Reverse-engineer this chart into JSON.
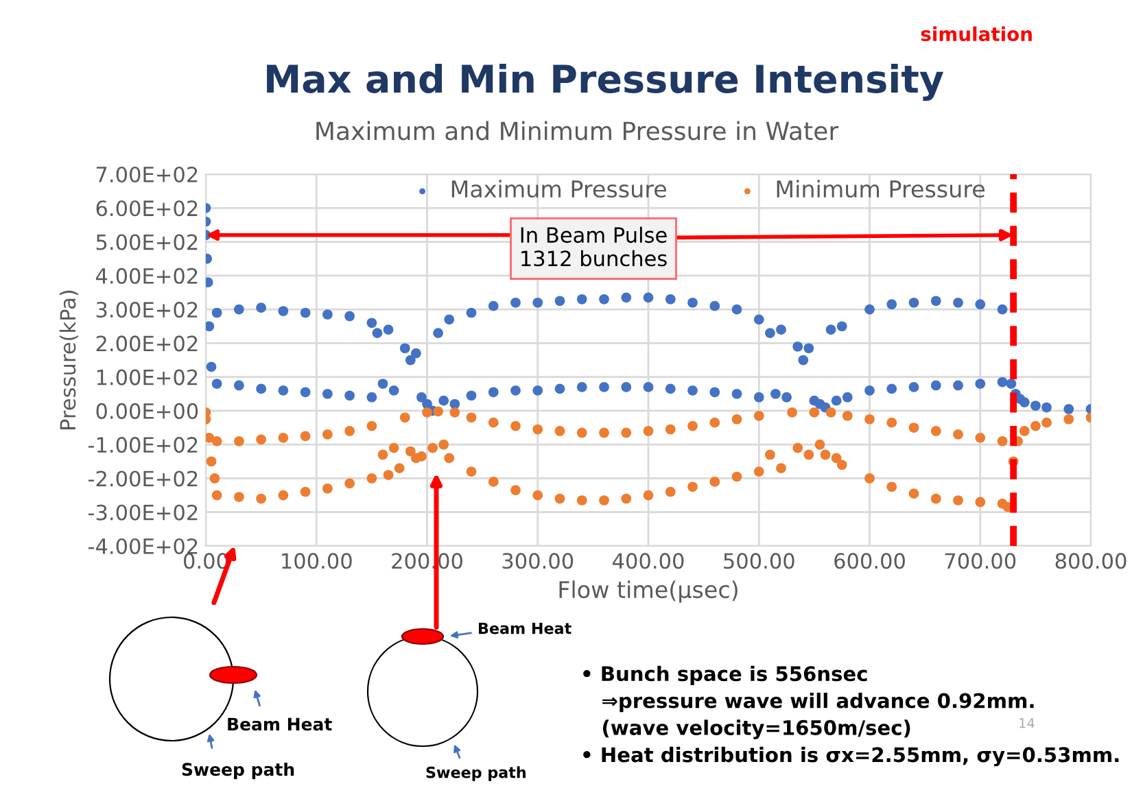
{
  "chart_data": {
    "type": "scatter",
    "title": "Max and Min Pressure Intensity",
    "subtitle": "Maximum and Minimum Pressure in Water",
    "xlabel": "Flow time(µsec)",
    "ylabel": "Pressure(kPa)",
    "xlim": [
      0,
      800
    ],
    "xticks": [
      {
        "value": 0,
        "label": "0.00"
      },
      {
        "value": 100,
        "label": "100.00"
      },
      {
        "value": 200,
        "label": "200.00"
      },
      {
        "value": 300,
        "label": "300.00"
      },
      {
        "value": 400,
        "label": "400.00"
      },
      {
        "value": 500,
        "label": "500.00"
      },
      {
        "value": 600,
        "label": "600.00"
      },
      {
        "value": 700,
        "label": "700.00"
      },
      {
        "value": 800,
        "label": "800.00"
      }
    ],
    "ylim": [
      -400,
      700
    ],
    "yticks": [
      {
        "value": -400,
        "label": "-4.00E+02"
      },
      {
        "value": -300,
        "label": "-3.00E+02"
      },
      {
        "value": -200,
        "label": "-2.00E+02"
      },
      {
        "value": -100,
        "label": "-1.00E+02"
      },
      {
        "value": 0,
        "label": "0.00E+00"
      },
      {
        "value": 100,
        "label": "1.00E+02"
      },
      {
        "value": 200,
        "label": "2.00E+02"
      },
      {
        "value": 300,
        "label": "3.00E+02"
      },
      {
        "value": 400,
        "label": "4.00E+02"
      },
      {
        "value": 500,
        "label": "5.00E+02"
      },
      {
        "value": 600,
        "label": "6.00E+02"
      },
      {
        "value": 700,
        "label": "7.00E+02"
      }
    ],
    "grid": true,
    "legend": "top",
    "marker": "circle",
    "series": [
      {
        "name": "Maximum Pressure",
        "color": "#4472c4",
        "x": [
          0,
          0,
          0,
          1,
          2,
          3,
          5,
          10,
          10,
          30,
          30,
          50,
          50,
          70,
          70,
          90,
          90,
          110,
          110,
          130,
          130,
          150,
          150,
          155,
          160,
          165,
          170,
          180,
          185,
          190,
          195,
          200,
          205,
          210,
          215,
          220,
          225,
          240,
          240,
          260,
          260,
          280,
          280,
          300,
          300,
          320,
          320,
          340,
          340,
          360,
          360,
          380,
          380,
          400,
          400,
          420,
          420,
          440,
          440,
          460,
          460,
          480,
          480,
          500,
          500,
          510,
          515,
          520,
          525,
          535,
          540,
          545,
          550,
          555,
          560,
          565,
          570,
          575,
          580,
          600,
          600,
          620,
          620,
          640,
          640,
          660,
          660,
          680,
          680,
          700,
          700,
          720,
          720,
          728,
          732,
          736,
          740,
          750,
          760,
          780,
          800
        ],
        "values": [
          600,
          560,
          520,
          450,
          380,
          250,
          130,
          290,
          80,
          300,
          75,
          305,
          65,
          295,
          60,
          290,
          55,
          285,
          50,
          280,
          45,
          260,
          40,
          230,
          80,
          240,
          60,
          185,
          150,
          170,
          40,
          20,
          0,
          230,
          30,
          270,
          20,
          290,
          45,
          310,
          55,
          320,
          60,
          320,
          60,
          325,
          65,
          330,
          70,
          330,
          70,
          335,
          70,
          335,
          70,
          330,
          65,
          320,
          60,
          310,
          55,
          300,
          50,
          270,
          40,
          230,
          50,
          240,
          40,
          190,
          150,
          185,
          30,
          20,
          10,
          240,
          30,
          250,
          40,
          300,
          60,
          315,
          65,
          320,
          70,
          325,
          75,
          320,
          75,
          315,
          80,
          300,
          85,
          80,
          50,
          35,
          25,
          15,
          10,
          5,
          5
        ]
      },
      {
        "name": "Minimum Pressure",
        "color": "#ed7d31",
        "x": [
          0,
          0,
          3,
          5,
          8,
          10,
          10,
          30,
          30,
          50,
          50,
          70,
          70,
          90,
          90,
          110,
          110,
          130,
          130,
          150,
          150,
          160,
          165,
          170,
          175,
          180,
          185,
          190,
          195,
          200,
          205,
          210,
          215,
          220,
          225,
          240,
          240,
          260,
          260,
          280,
          280,
          300,
          300,
          320,
          320,
          340,
          340,
          360,
          360,
          380,
          380,
          400,
          400,
          420,
          420,
          440,
          440,
          460,
          460,
          480,
          480,
          500,
          500,
          510,
          520,
          530,
          535,
          545,
          550,
          555,
          560,
          565,
          570,
          575,
          580,
          600,
          600,
          620,
          620,
          640,
          640,
          660,
          660,
          680,
          680,
          700,
          700,
          720,
          720,
          725,
          730,
          734,
          740,
          750,
          760,
          780,
          800
        ],
        "values": [
          -5,
          -25,
          -80,
          -150,
          -200,
          -90,
          -250,
          -90,
          -255,
          -85,
          -260,
          -80,
          -250,
          -75,
          -240,
          -70,
          -230,
          -60,
          -215,
          -45,
          -200,
          -130,
          -190,
          -110,
          -170,
          -20,
          -120,
          -140,
          -135,
          -5,
          -110,
          -2,
          -100,
          -140,
          -5,
          -20,
          -180,
          -35,
          -210,
          -45,
          -235,
          -55,
          -250,
          -60,
          -260,
          -65,
          -265,
          -65,
          -265,
          -65,
          -260,
          -60,
          -250,
          -55,
          -240,
          -45,
          -225,
          -35,
          -210,
          -25,
          -195,
          -15,
          -180,
          -130,
          -170,
          -5,
          -110,
          -130,
          -5,
          -100,
          -130,
          -5,
          -140,
          -160,
          -15,
          -25,
          -200,
          -35,
          -225,
          -50,
          -245,
          -60,
          -260,
          -70,
          -265,
          -80,
          -270,
          -90,
          -275,
          -285,
          -150,
          -90,
          -60,
          -45,
          -35,
          -25,
          -20
        ]
      }
    ],
    "ref_lines": [
      {
        "axis": "x",
        "value": 730,
        "color": "#ff0000",
        "line_style": "dashed"
      }
    ],
    "annotations": [
      "simulation",
      {
        "text": "In Beam Pulse\n1312 bunches",
        "x": 730,
        "y": 520
      },
      "Beam Heat",
      "Sweep path",
      "Beam Heat",
      "Sweep path",
      "• Bunch space is 556nsec\n   ⇒pressure wave will advance 0.92mm.\n   (wave velocity=1650m/sec)\n• Heat distribution is σx=2.55mm, σy=0.53mm.",
      "14"
    ]
  }
}
